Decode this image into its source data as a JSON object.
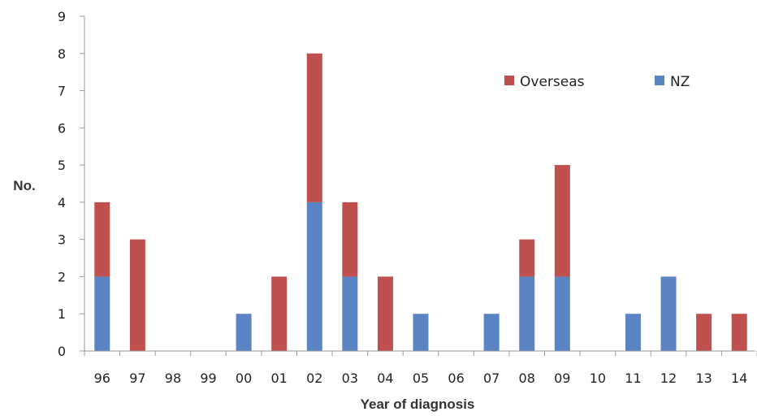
{
  "chart_data": {
    "type": "bar",
    "stacked": true,
    "categories": [
      "96",
      "97",
      "98",
      "99",
      "00",
      "01",
      "02",
      "03",
      "04",
      "05",
      "06",
      "07",
      "08",
      "09",
      "10",
      "11",
      "12",
      "13",
      "14"
    ],
    "series": [
      {
        "name": "NZ",
        "color": "#5b84c4",
        "values": [
          2,
          0,
          0,
          0,
          1,
          0,
          4,
          2,
          0,
          1,
          0,
          1,
          2,
          2,
          0,
          1,
          2,
          0,
          0
        ]
      },
      {
        "name": "Overseas",
        "color": "#c0504d",
        "values": [
          2,
          3,
          0,
          0,
          0,
          2,
          4,
          2,
          2,
          0,
          0,
          0,
          1,
          3,
          0,
          0,
          0,
          1,
          1
        ]
      }
    ],
    "title": "",
    "xlabel": "Year of diagnosis",
    "ylabel": "No.",
    "ylim": [
      0,
      9
    ],
    "yticks": [
      0,
      1,
      2,
      3,
      4,
      5,
      6,
      7,
      8,
      9
    ],
    "grid": false,
    "legend": {
      "placement": "top-right",
      "order": [
        "Overseas",
        "NZ"
      ]
    }
  }
}
